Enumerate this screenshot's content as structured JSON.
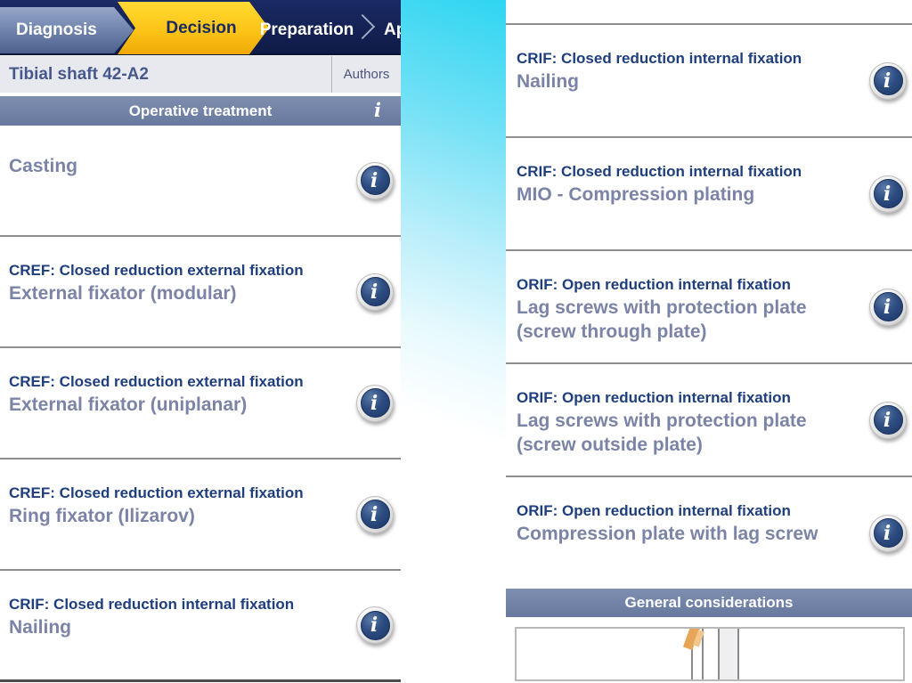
{
  "colors": {
    "accent_yellow": "#fcc415",
    "navy_bar": "#0f1b47",
    "slate_header": "#6f7fa5",
    "item_title_navy": "#1e3e7e",
    "item_subtitle_slate": "#7b84a6",
    "strip_cyan": "#2ed5f1"
  },
  "glyphs": {
    "info_italic": "i"
  },
  "tabs": {
    "items": [
      {
        "label": "Diagnosis"
      },
      {
        "label": "Decision",
        "active": true
      },
      {
        "label": "Preparation"
      },
      {
        "label": "Ap"
      }
    ]
  },
  "title_bar": {
    "title": "Tibial shaft 42-A2",
    "authors_label": "Authors"
  },
  "left_panel": {
    "header": {
      "title": "Operative treatment"
    },
    "items": [
      {
        "title": "",
        "subtitle": "Casting"
      },
      {
        "title": "CREF: Closed reduction external fixation",
        "subtitle": "External fixator (modular)"
      },
      {
        "title": "CREF: Closed reduction external fixation",
        "subtitle": "External fixator (uniplanar)"
      },
      {
        "title": "CREF: Closed reduction external fixation",
        "subtitle": "Ring fixator (Ilizarov)"
      },
      {
        "title": "CRIF: Closed reduction internal fixation",
        "subtitle": "Nailing"
      }
    ]
  },
  "right_panel": {
    "items": [
      {
        "title": "CRIF: Closed reduction internal fixation",
        "subtitle": "Nailing"
      },
      {
        "title": "CRIF: Closed reduction internal fixation",
        "subtitle": "MIO - Compression plating"
      },
      {
        "title": "ORIF: Open reduction internal fixation",
        "subtitle": "Lag screws with protection plate (screw through plate)"
      },
      {
        "title": "ORIF: Open reduction internal fixation",
        "subtitle": "Lag screws with protection plate (screw outside plate)"
      },
      {
        "title": "ORIF: Open reduction internal fixation",
        "subtitle": "Compression plate with lag screw"
      }
    ],
    "section_header": "General considerations"
  }
}
